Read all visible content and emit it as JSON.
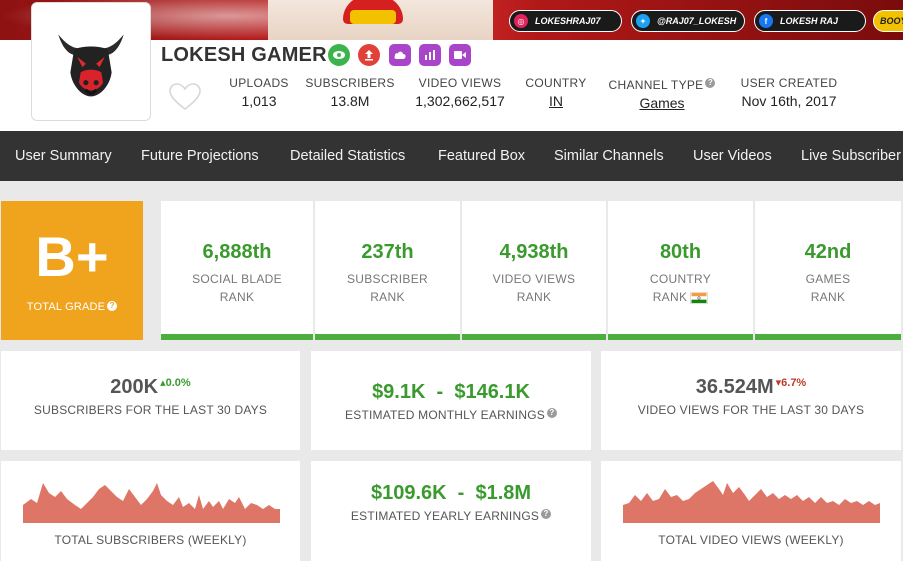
{
  "banner": {
    "social": [
      {
        "icon": "instagram-icon",
        "handle": "LOKESHRAJ07"
      },
      {
        "icon": "twitter-icon",
        "handle": "@RAJ07_LOKESH"
      },
      {
        "icon": "facebook-icon",
        "handle": "LOKESH RAJ"
      },
      {
        "icon": "more-social-icon",
        "handle": "BOOYA"
      }
    ]
  },
  "channel": {
    "name": "LOKESH GAMER",
    "buttons": [
      "eye-icon",
      "upload-icon",
      "cloud-icon",
      "chart-icon",
      "video-icon"
    ],
    "stats": {
      "uploads_label": "UPLOADS",
      "uploads": "1,013",
      "subscribers_label": "SUBSCRIBERS",
      "subscribers": "13.8M",
      "views_label": "VIDEO VIEWS",
      "views": "1,302,662,517",
      "country_label": "COUNTRY",
      "country": "IN",
      "type_label": "CHANNEL TYPE",
      "type": "Games",
      "created_label": "USER CREATED",
      "created": "Nov 16th, 2017"
    }
  },
  "nav": {
    "items": [
      "User Summary",
      "Future Projections",
      "Detailed Statistics",
      "Featured Box",
      "Similar Channels",
      "User Videos",
      "Live Subscriber"
    ]
  },
  "grade": {
    "letter": "B+",
    "label": "TOTAL GRADE"
  },
  "ranks": [
    {
      "value": "6,888th",
      "line1": "SOCIAL BLADE",
      "line2": "RANK"
    },
    {
      "value": "237th",
      "line1": "SUBSCRIBER",
      "line2": "RANK"
    },
    {
      "value": "4,938th",
      "line1": "VIDEO VIEWS",
      "line2": "RANK"
    },
    {
      "value": "80th",
      "line1": "COUNTRY",
      "line2": "RANK"
    },
    {
      "value": "42nd",
      "line1": "GAMES",
      "line2": "RANK"
    }
  ],
  "summary": {
    "subs30": {
      "value": "200K",
      "delta": "0.0%",
      "label": "SUBSCRIBERS FOR THE LAST 30 DAYS"
    },
    "monthly": {
      "value": "$9.1K  -  $146.1K",
      "label": "ESTIMATED MONTHLY EARNINGS"
    },
    "views30": {
      "value": "36.524M",
      "delta": "6.7%",
      "label": "VIDEO VIEWS FOR THE LAST 30 DAYS"
    },
    "subsWeekly": {
      "label": "TOTAL SUBSCRIBERS (WEEKLY)"
    },
    "yearly": {
      "value": "$109.6K  -  $1.8M",
      "label": "ESTIMATED YEARLY EARNINGS"
    },
    "viewsWeekly": {
      "label": "TOTAL VIDEO VIEWS (WEEKLY)"
    }
  },
  "colors": {
    "accent_green": "#3a9a2d",
    "grade_orange": "#f0a41e",
    "nav_bg": "#333333",
    "spark_fill": "#de7667"
  }
}
